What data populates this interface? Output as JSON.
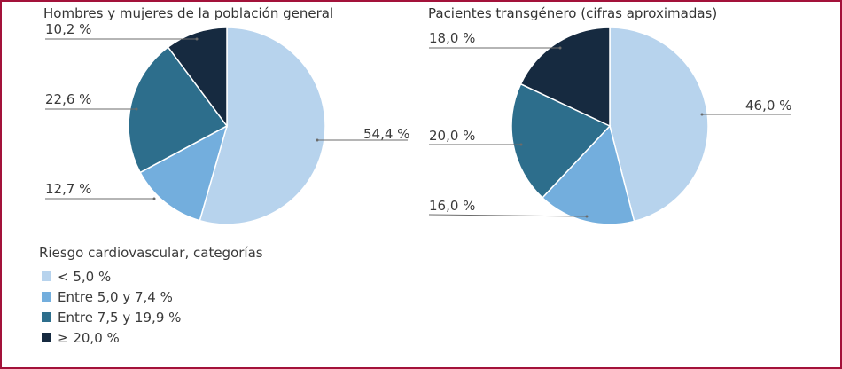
{
  "colors": {
    "border": "#a3123a",
    "cat1": "#b7d3ed",
    "cat2": "#73aedd",
    "cat3": "#2d6e8c",
    "cat4": "#162a40"
  },
  "legend": {
    "title": "Riesgo cardiovascular, categorías",
    "items": [
      {
        "label": "< 5,0 %",
        "color": "#b7d3ed"
      },
      {
        "label": "Entre 5,0 y 7,4 %",
        "color": "#73aedd"
      },
      {
        "label": "Entre 7,5 y 19,9 %",
        "color": "#2d6e8c"
      },
      {
        "label": "≥ 20,0 %",
        "color": "#162a40"
      }
    ]
  },
  "chart_data": [
    {
      "type": "pie",
      "title": "Hombres y mujeres de la población general",
      "categories": [
        "< 5,0 %",
        "Entre 5,0 y 7,4 %",
        "Entre 7,5 y 19,9 %",
        "≥ 20,0 %"
      ],
      "values": [
        54.4,
        12.7,
        22.6,
        10.2
      ],
      "data_labels": [
        "54,4 %",
        "12,7 %",
        "22,6 %",
        "10,2 %"
      ]
    },
    {
      "type": "pie",
      "title": "Pacientes transgénero (cifras aproximadas)",
      "categories": [
        "< 5,0 %",
        "Entre 5,0 y 7,4 %",
        "Entre 7,5 y 19,9 %",
        "≥ 20,0 %"
      ],
      "values": [
        46.0,
        16.0,
        20.0,
        18.0
      ],
      "data_labels": [
        "46,0 %",
        "16,0 %",
        "20,0 %",
        "18,0 %"
      ]
    }
  ]
}
